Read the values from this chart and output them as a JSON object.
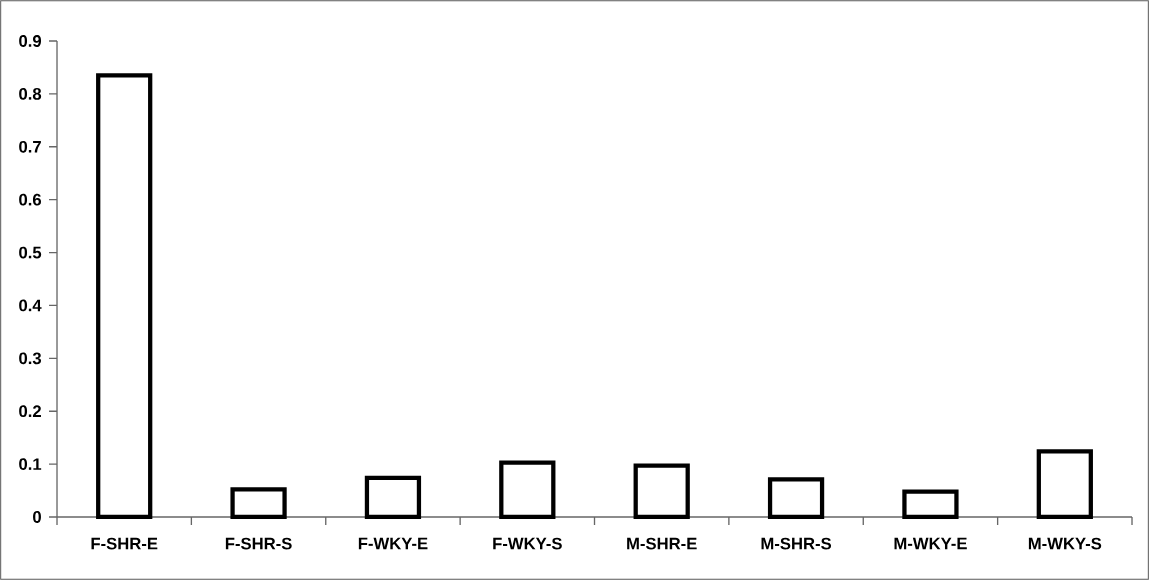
{
  "chart_data": {
    "type": "bar",
    "categories": [
      "F-SHR-E",
      "F-SHR-S",
      "F-WKY-E",
      "F-WKY-S",
      "M-SHR-E",
      "M-SHR-S",
      "M-WKY-E",
      "M-WKY-S"
    ],
    "values": [
      0.835,
      0.052,
      0.074,
      0.103,
      0.097,
      0.071,
      0.048,
      0.124
    ],
    "color": "#ffffff",
    "ylim": [
      0,
      0.9
    ],
    "yticks": [
      0,
      0.1,
      0.2,
      0.3,
      0.4,
      0.5,
      0.6,
      0.7,
      0.8,
      0.9
    ]
  }
}
